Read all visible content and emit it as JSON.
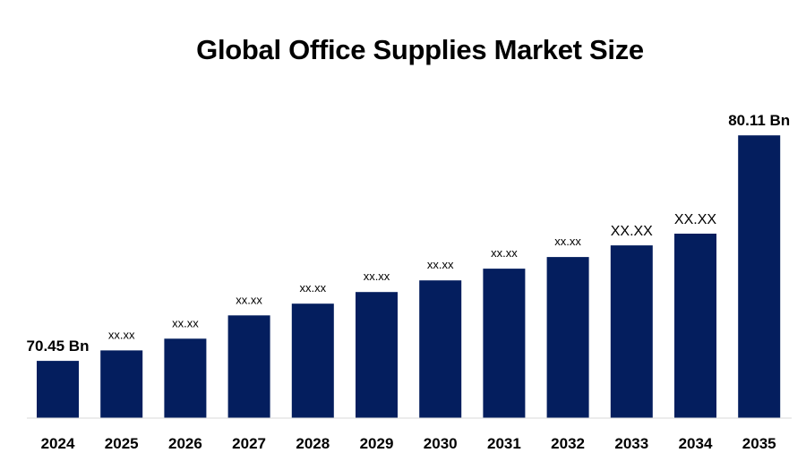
{
  "chart_data": {
    "type": "bar",
    "title": "Global Office Supplies Market Size",
    "xlabel": "",
    "ylabel": "",
    "categories": [
      "2024",
      "2025",
      "2026",
      "2027",
      "2028",
      "2029",
      "2030",
      "2031",
      "2032",
      "2033",
      "2034",
      "2035"
    ],
    "values": [
      70.45,
      70.9,
      71.4,
      72.4,
      72.9,
      73.4,
      73.9,
      74.4,
      74.9,
      75.4,
      75.9,
      80.11
    ],
    "data_labels": [
      "70.45 Bn",
      "xx.xx",
      "xx.xx",
      "xx.xx",
      "xx.xx",
      "xx.xx",
      "xx.xx",
      "xx.xx",
      "xx.xx",
      "XX.XX",
      "XX.XX",
      "80.11 Bn"
    ],
    "ylim": [
      68,
      81.5
    ],
    "grid": false,
    "legend": "none",
    "colors": {
      "bar": "#041E5E",
      "axis": "#D9D9D9",
      "text": "#000000"
    }
  }
}
